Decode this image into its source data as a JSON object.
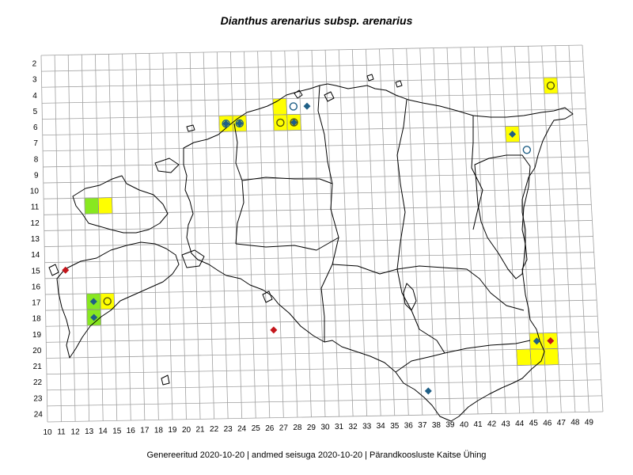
{
  "title": "Dianthus arenarius subsp. arenarius",
  "footer": "Genereeritud 2020-10-20  |  andmed seisuga 2020-10-20  |  Pärandkoosluste Kaitse Ühing",
  "colors": {
    "grid": "#a0a0a0",
    "yellow_cell": "#ffff00",
    "green_cell": "#88e820",
    "diamond_blue": "#1f5f86",
    "diamond_red": "#c4161c",
    "circle_blue": "#1f5f86",
    "circle_dark": "#55550a",
    "coast": "#000000"
  },
  "grid": {
    "columns": [
      "10",
      "11",
      "12",
      "13",
      "14",
      "15",
      "16",
      "17",
      "18",
      "19",
      "20",
      "21",
      "22",
      "23",
      "24",
      "25",
      "26",
      "27",
      "28",
      "29",
      "30",
      "31",
      "32",
      "33",
      "34",
      "35",
      "36",
      "37",
      "38",
      "39",
      "40",
      "41",
      "42",
      "43",
      "44",
      "45",
      "46",
      "47",
      "48",
      "49"
    ],
    "rows": [
      "2",
      "3",
      "4",
      "5",
      "6",
      "7",
      "8",
      "9",
      "10",
      "11",
      "12",
      "13",
      "14",
      "15",
      "16",
      "17",
      "18",
      "19",
      "20",
      "21",
      "22",
      "23",
      "24"
    ]
  },
  "cells": [
    {
      "col": 23,
      "row": 6,
      "color": "yellow"
    },
    {
      "col": 24,
      "row": 6,
      "color": "yellow"
    },
    {
      "col": 27,
      "row": 5,
      "color": "yellow"
    },
    {
      "col": 27,
      "row": 6,
      "color": "yellow"
    },
    {
      "col": 28,
      "row": 6,
      "color": "yellow"
    },
    {
      "col": 47,
      "row": 4,
      "color": "yellow"
    },
    {
      "col": 44,
      "row": 7,
      "color": "yellow"
    },
    {
      "col": 13,
      "row": 11,
      "color": "green"
    },
    {
      "col": 14,
      "row": 11,
      "color": "yellow"
    },
    {
      "col": 13,
      "row": 17,
      "color": "green"
    },
    {
      "col": 14,
      "row": 17,
      "color": "yellow"
    },
    {
      "col": 13,
      "row": 18,
      "color": "green"
    },
    {
      "col": 45,
      "row": 20,
      "color": "yellow"
    },
    {
      "col": 46,
      "row": 20,
      "color": "yellow"
    },
    {
      "col": 44,
      "row": 21,
      "color": "yellow"
    },
    {
      "col": 45,
      "row": 21,
      "color": "yellow"
    },
    {
      "col": 46,
      "row": 21,
      "color": "yellow"
    }
  ],
  "markers": [
    {
      "type": "diamond",
      "color": "blue",
      "col": 23,
      "row": 6
    },
    {
      "type": "circle",
      "color": "blue",
      "col": 23,
      "row": 6
    },
    {
      "type": "diamond",
      "color": "blue",
      "col": 24,
      "row": 6
    },
    {
      "type": "circle",
      "color": "blue",
      "col": 24,
      "row": 6
    },
    {
      "type": "circle",
      "color": "dark",
      "col": 27,
      "row": 6
    },
    {
      "type": "diamond",
      "color": "blue",
      "col": 28,
      "row": 6
    },
    {
      "type": "circle",
      "color": "dark",
      "col": 28,
      "row": 6
    },
    {
      "type": "circle",
      "color": "blue",
      "col": 28,
      "row": 5
    },
    {
      "type": "diamond",
      "color": "blue",
      "col": 29,
      "row": 5
    },
    {
      "type": "circle",
      "color": "dark",
      "col": 47,
      "row": 4
    },
    {
      "type": "diamond",
      "color": "blue",
      "col": 44,
      "row": 7
    },
    {
      "type": "circle",
      "color": "blue",
      "col": 45,
      "row": 8
    },
    {
      "type": "diamond",
      "color": "red",
      "col": 11,
      "row": 15
    },
    {
      "type": "diamond",
      "color": "blue",
      "col": 13,
      "row": 17
    },
    {
      "type": "circle",
      "color": "dark",
      "col": 14,
      "row": 17
    },
    {
      "type": "diamond",
      "color": "blue",
      "col": 13,
      "row": 18
    },
    {
      "type": "diamond",
      "color": "red",
      "col": 26,
      "row": 19
    },
    {
      "type": "diamond",
      "color": "blue",
      "col": 45,
      "row": 20
    },
    {
      "type": "diamond",
      "color": "red",
      "col": 46,
      "row": 20
    },
    {
      "type": "diamond",
      "color": "blue",
      "col": 37,
      "row": 23
    }
  ]
}
